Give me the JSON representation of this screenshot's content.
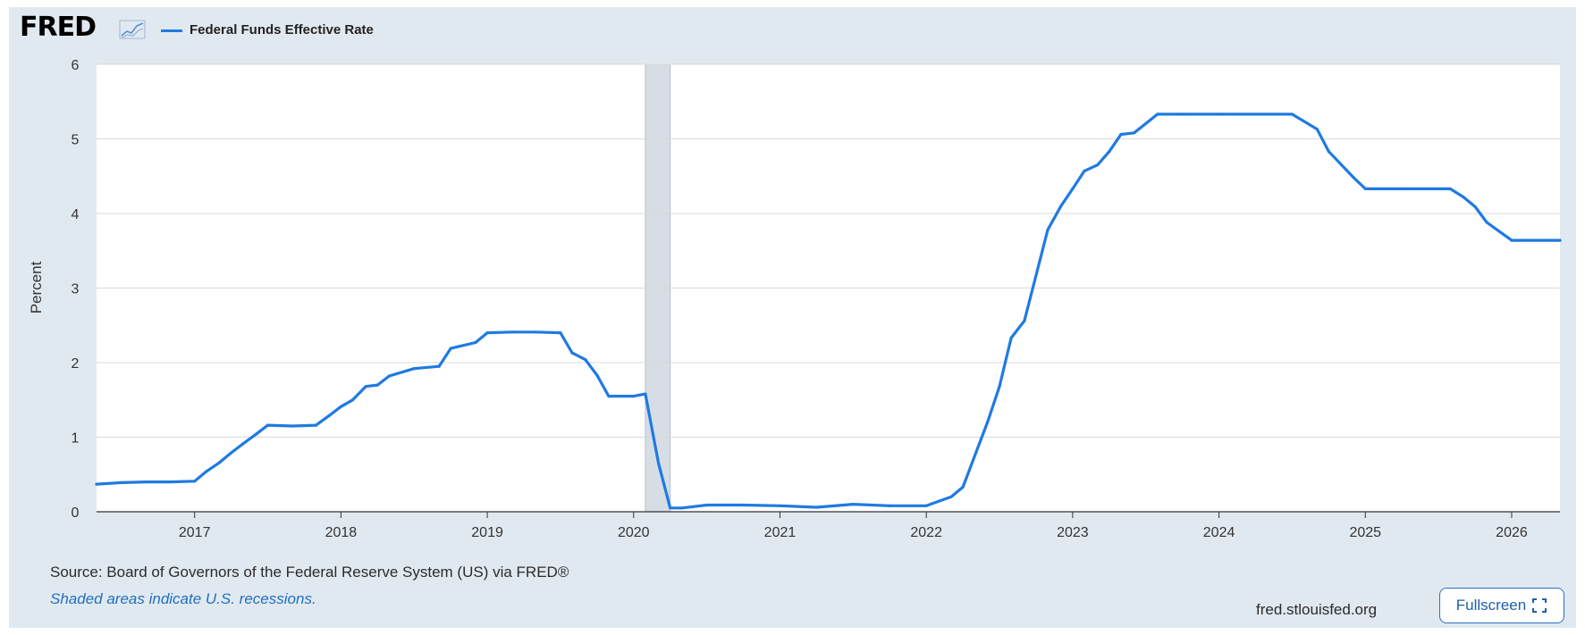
{
  "brand": {
    "logo_text": "FRED",
    "accent": "#1f7ae0"
  },
  "legend": {
    "label": "Federal Funds Effective Rate"
  },
  "footer": {
    "source": "Source: Board of Governors of the Federal Reserve System (US) via FRED®",
    "recession_note": "Shaded areas indicate U.S. recessions.",
    "site": "fred.stlouisfed.org",
    "fullscreen_label": "Fullscreen"
  },
  "chart_data": {
    "type": "line",
    "ylabel": "Percent",
    "xlabel": "",
    "title": "",
    "ylim": [
      0,
      6
    ],
    "xlim": [
      2016.33,
      2026.33
    ],
    "y_ticks": [
      0,
      1,
      2,
      3,
      4,
      5,
      6
    ],
    "x_ticks": [
      2017,
      2018,
      2019,
      2020,
      2021,
      2022,
      2023,
      2024,
      2025,
      2026
    ],
    "grid": true,
    "legend_position": "top-left",
    "recession": {
      "start": 2020.08,
      "end": 2020.25
    },
    "series": [
      {
        "name": "Federal Funds Effective Rate",
        "color": "#1f7ae0",
        "x": [
          2016.33,
          2016.5,
          2016.67,
          2016.83,
          2017.0,
          2017.08,
          2017.17,
          2017.25,
          2017.33,
          2017.42,
          2017.5,
          2017.67,
          2017.83,
          2017.92,
          2018.0,
          2018.08,
          2018.17,
          2018.25,
          2018.33,
          2018.5,
          2018.67,
          2018.75,
          2018.92,
          2019.0,
          2019.17,
          2019.33,
          2019.5,
          2019.58,
          2019.67,
          2019.75,
          2019.83,
          2020.0,
          2020.08,
          2020.17,
          2020.25,
          2020.33,
          2020.5,
          2020.75,
          2021.0,
          2021.25,
          2021.5,
          2021.75,
          2022.0,
          2022.17,
          2022.25,
          2022.42,
          2022.5,
          2022.58,
          2022.67,
          2022.83,
          2022.92,
          2023.0,
          2023.08,
          2023.17,
          2023.25,
          2023.33,
          2023.42,
          2023.58,
          2023.75,
          2024.0,
          2024.5,
          2024.67,
          2024.75,
          2024.92,
          2025.0,
          2025.25,
          2025.58,
          2025.67,
          2025.75,
          2025.83,
          2026.0,
          2026.33
        ],
        "y": [
          0.37,
          0.39,
          0.4,
          0.4,
          0.41,
          0.54,
          0.66,
          0.79,
          0.91,
          1.04,
          1.16,
          1.15,
          1.16,
          1.29,
          1.41,
          1.5,
          1.68,
          1.7,
          1.82,
          1.92,
          1.95,
          2.19,
          2.27,
          2.4,
          2.41,
          2.41,
          2.4,
          2.13,
          2.04,
          1.83,
          1.55,
          1.55,
          1.58,
          0.65,
          0.05,
          0.05,
          0.09,
          0.09,
          0.08,
          0.06,
          0.1,
          0.08,
          0.08,
          0.2,
          0.33,
          1.21,
          1.68,
          2.33,
          2.56,
          3.78,
          4.1,
          4.33,
          4.57,
          4.65,
          4.83,
          5.06,
          5.08,
          5.33,
          5.33,
          5.33,
          5.33,
          5.13,
          4.83,
          4.48,
          4.33,
          4.33,
          4.33,
          4.22,
          4.09,
          3.88,
          3.64,
          3.64
        ]
      }
    ]
  }
}
